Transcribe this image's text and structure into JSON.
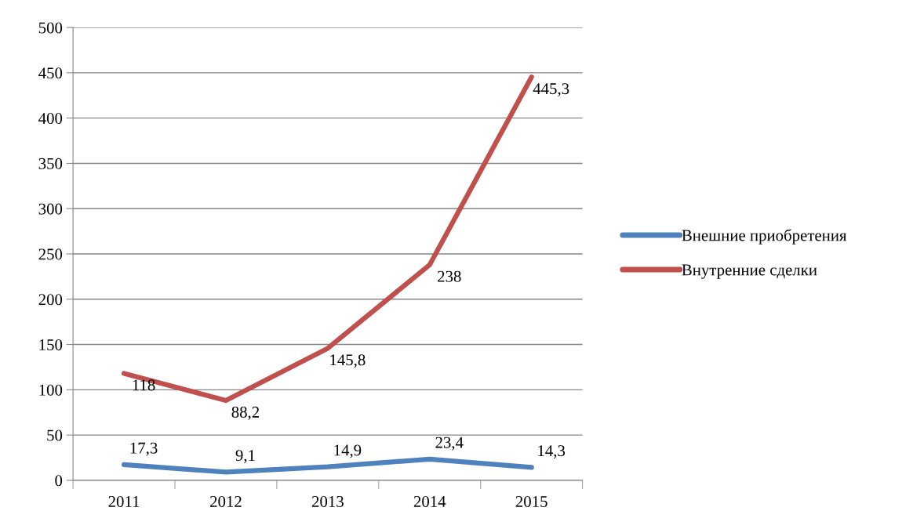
{
  "chart_data": {
    "type": "line",
    "categories": [
      "2011",
      "2012",
      "2013",
      "2014",
      "2015"
    ],
    "series": [
      {
        "name": "Внешние приобретения",
        "color": "#4f81bd",
        "values": [
          17.3,
          9.1,
          14.9,
          23.4,
          14.3
        ],
        "value_labels": [
          "17,3",
          "9,1",
          "14,9",
          "23,4",
          "14,3"
        ]
      },
      {
        "name": "Внутренние сделки",
        "color": "#c0504d",
        "values": [
          118,
          88.2,
          145.8,
          238,
          445.3
        ],
        "value_labels": [
          "118",
          "88,2",
          "145,8",
          "238",
          "445,3"
        ]
      }
    ],
    "ylim": [
      0,
      500
    ],
    "yticks": [
      0,
      50,
      100,
      150,
      200,
      250,
      300,
      350,
      400,
      450,
      500
    ],
    "grid": "y",
    "legend": "right",
    "marker": "none",
    "line_style": "solid"
  }
}
